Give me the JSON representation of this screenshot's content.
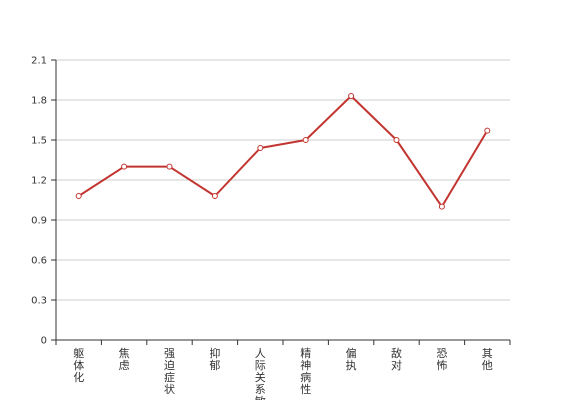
{
  "chart_data": {
    "type": "line",
    "categories": [
      "躯体化",
      "焦虑",
      "强迫症状",
      "抑郁",
      "人际关系敏感",
      "精神病性",
      "偏执",
      "敌对",
      "恐怖",
      "其他"
    ],
    "series": [
      {
        "values": [
          1.08,
          1.3,
          1.3,
          1.08,
          1.44,
          1.5,
          1.83,
          1.5,
          1.0,
          1.57
        ]
      }
    ],
    "y_ticks": [
      "0",
      "0.3",
      "0.6",
      "0.9",
      "1.2",
      "1.5",
      "1.8",
      "2.1"
    ],
    "ylim": [
      0,
      2.1
    ],
    "grid": true,
    "colors": {
      "line": "#c23531",
      "grid": "#cccccc",
      "axis": "#333333"
    }
  }
}
